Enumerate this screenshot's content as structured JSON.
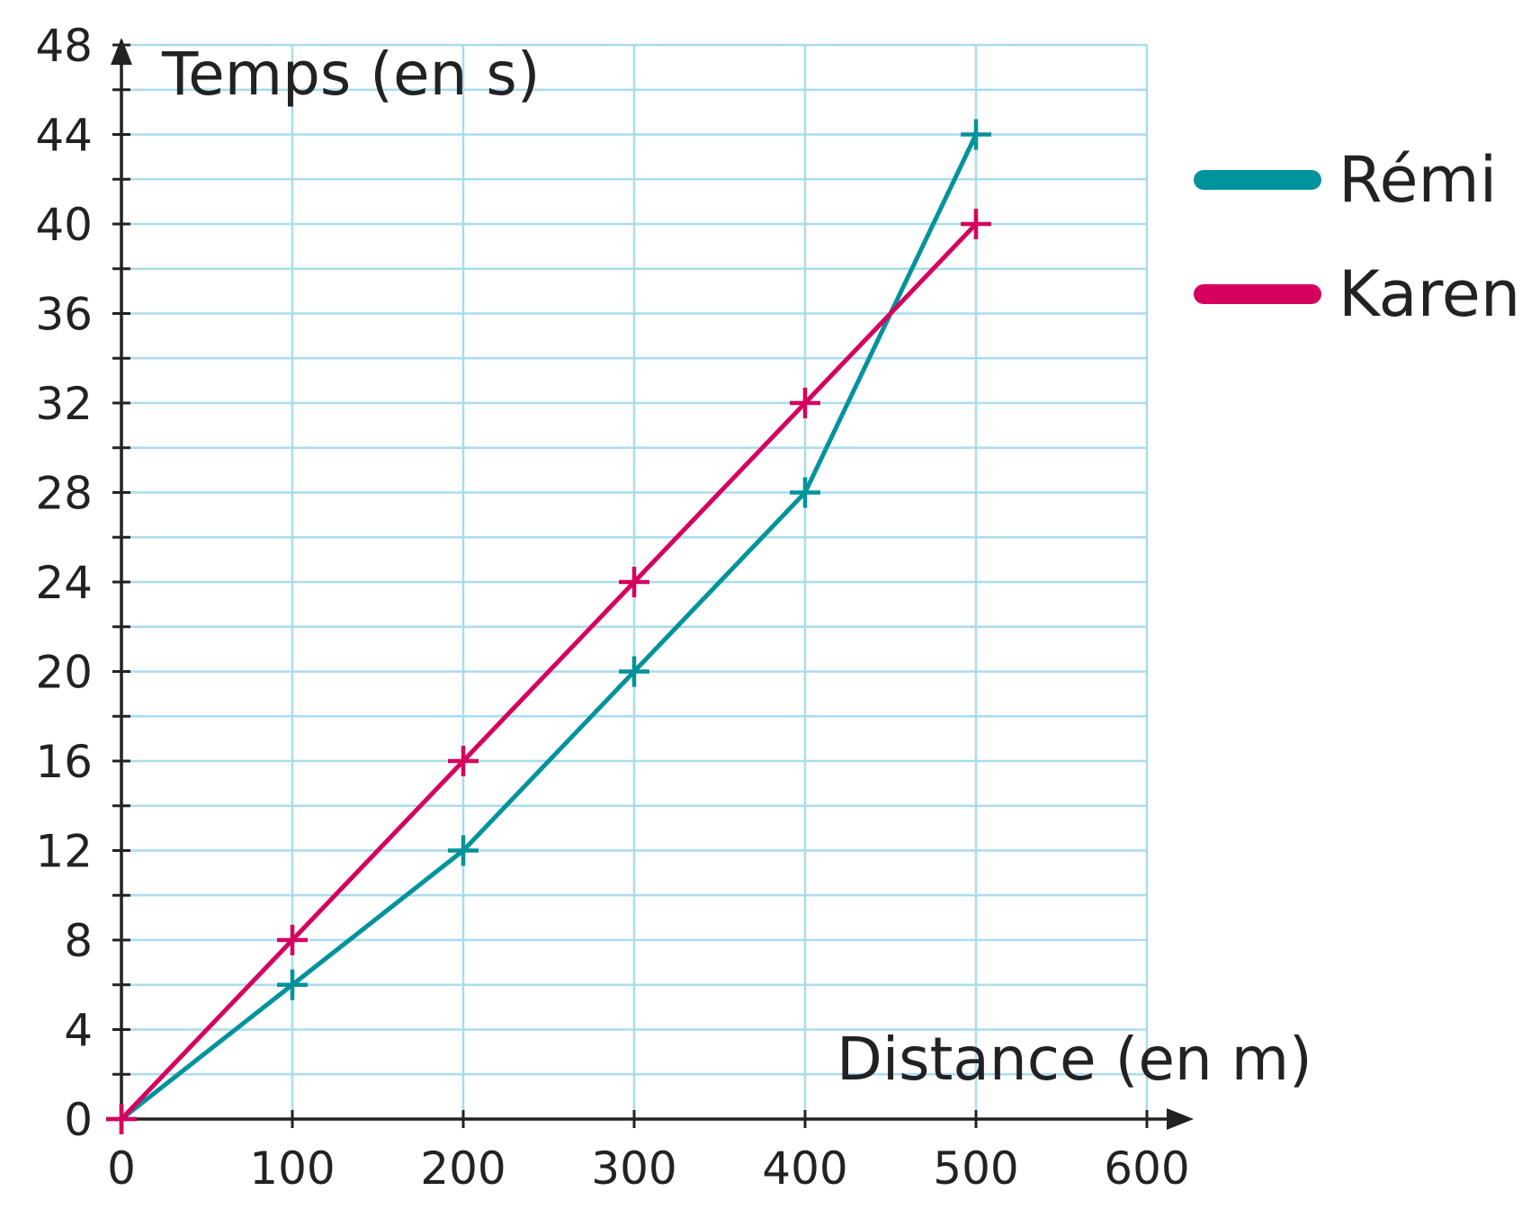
{
  "chart_data": {
    "type": "line",
    "xlabel": "Distance (en m)",
    "ylabel": "Temps (en s)",
    "xlim": [
      0,
      600
    ],
    "ylim": [
      0,
      48
    ],
    "x_ticks": [
      "0",
      "100",
      "200",
      "300",
      "400",
      "500",
      "600"
    ],
    "y_ticks": [
      "0",
      "4",
      "8",
      "12",
      "16",
      "20",
      "24",
      "28",
      "32",
      "36",
      "40",
      "44",
      "48"
    ],
    "grid": true,
    "legend_position": "right",
    "series": [
      {
        "name": "Rémi",
        "color": "#00939c",
        "x": [
          0,
          100,
          200,
          300,
          400,
          500
        ],
        "y": [
          0,
          6,
          12,
          20,
          28,
          44
        ]
      },
      {
        "name": "Karen",
        "color": "#d6005e",
        "x": [
          0,
          100,
          200,
          300,
          400,
          500
        ],
        "y": [
          0,
          8,
          16,
          24,
          32,
          40
        ]
      }
    ]
  }
}
